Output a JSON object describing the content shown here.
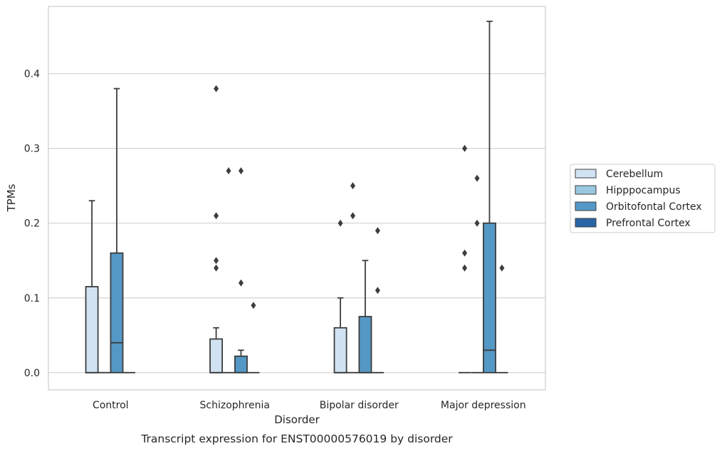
{
  "chart_data": {
    "type": "box",
    "title": "",
    "caption": "Transcript expression for ENST00000576019 by disorder",
    "xlabel": "Disorder",
    "ylabel": "TPMs",
    "ylim": [
      -0.023,
      0.49
    ],
    "yticks": [
      0.0,
      0.1,
      0.2,
      0.3,
      0.4
    ],
    "ytick_labels": [
      "0.0",
      "0.1",
      "0.2",
      "0.3",
      "0.4"
    ],
    "grid": "horizontal",
    "legend_position": "right",
    "categories": [
      "Control",
      "Schizophrenia",
      "Bipolar disorder",
      "Major depression"
    ],
    "series": [
      {
        "name": "Cerebellum",
        "color": "#d1e2f2",
        "boxes": [
          {
            "whislo": 0.0,
            "q1": 0.0,
            "med": 0.0,
            "q3": 0.115,
            "whishi": 0.23,
            "fliers": []
          },
          {
            "whislo": 0.0,
            "q1": 0.0,
            "med": 0.0,
            "q3": 0.045,
            "whishi": 0.06,
            "fliers": [
              0.14,
              0.15,
              0.21,
              0.38
            ]
          },
          {
            "whislo": 0.0,
            "q1": 0.0,
            "med": 0.0,
            "q3": 0.06,
            "whishi": 0.1,
            "fliers": [
              0.2
            ]
          },
          {
            "whislo": 0.0,
            "q1": 0.0,
            "med": 0.0,
            "q3": 0.0,
            "whishi": 0.0,
            "fliers": [
              0.14,
              0.16,
              0.3
            ]
          }
        ]
      },
      {
        "name": "Hipppocampus",
        "color": "#9ac8e0",
        "boxes": [
          {
            "whislo": 0.0,
            "q1": 0.0,
            "med": 0.0,
            "q3": 0.0,
            "whishi": 0.0,
            "fliers": []
          },
          {
            "whislo": 0.0,
            "q1": 0.0,
            "med": 0.0,
            "q3": 0.0,
            "whishi": 0.0,
            "fliers": [
              0.27
            ]
          },
          {
            "whislo": 0.0,
            "q1": 0.0,
            "med": 0.0,
            "q3": 0.0,
            "whishi": 0.0,
            "fliers": [
              0.21,
              0.25
            ]
          },
          {
            "whislo": 0.0,
            "q1": 0.0,
            "med": 0.0,
            "q3": 0.0,
            "whishi": 0.0,
            "fliers": [
              0.2,
              0.26
            ]
          }
        ]
      },
      {
        "name": "Orbitofontal Cortex",
        "color": "#5498c6",
        "boxes": [
          {
            "whislo": 0.0,
            "q1": 0.0,
            "med": 0.04,
            "q3": 0.16,
            "whishi": 0.38,
            "fliers": []
          },
          {
            "whislo": 0.0,
            "q1": 0.0,
            "med": 0.0,
            "q3": 0.022,
            "whishi": 0.03,
            "fliers": [
              0.12,
              0.27
            ]
          },
          {
            "whislo": 0.0,
            "q1": 0.0,
            "med": 0.0,
            "q3": 0.075,
            "whishi": 0.15,
            "fliers": []
          },
          {
            "whislo": 0.0,
            "q1": 0.0,
            "med": 0.03,
            "q3": 0.2,
            "whishi": 0.47,
            "fliers": []
          }
        ]
      },
      {
        "name": "Prefrontal Cortex",
        "color": "#2866a6",
        "boxes": [
          {
            "whislo": 0.0,
            "q1": 0.0,
            "med": 0.0,
            "q3": 0.0,
            "whishi": 0.0,
            "fliers": []
          },
          {
            "whislo": 0.0,
            "q1": 0.0,
            "med": 0.0,
            "q3": 0.0,
            "whishi": 0.0,
            "fliers": [
              0.09
            ]
          },
          {
            "whislo": 0.0,
            "q1": 0.0,
            "med": 0.0,
            "q3": 0.0,
            "whishi": 0.0,
            "fliers": [
              0.11,
              0.19
            ]
          },
          {
            "whislo": 0.0,
            "q1": 0.0,
            "med": 0.0,
            "q3": 0.0,
            "whishi": 0.0,
            "fliers": [
              0.14
            ]
          }
        ]
      }
    ]
  }
}
